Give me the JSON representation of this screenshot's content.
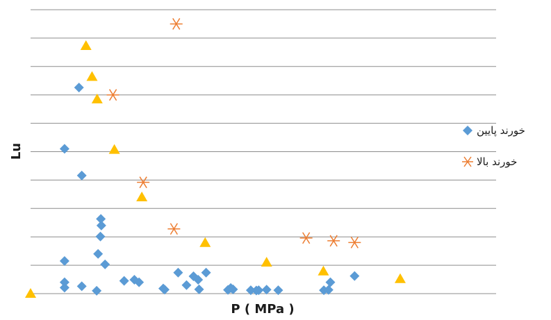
{
  "chart_data": {
    "type": "scatter",
    "title": "",
    "xlabel": "P ( MPa )",
    "ylabel": "Lu",
    "xlim": [
      0,
      100
    ],
    "ylim": [
      0,
      100
    ],
    "grid": "horizontal",
    "legend_position": "right",
    "series": [
      {
        "name": "خورند پایین",
        "marker": "diamond",
        "color": "#5B9BD5",
        "points": [
          [
            7.3,
            2.1
          ],
          [
            7.3,
            4.0
          ],
          [
            7.3,
            11.5
          ],
          [
            7.3,
            51.0
          ],
          [
            11.0,
            2.6
          ],
          [
            11.0,
            41.6
          ],
          [
            10.4,
            72.6
          ],
          [
            14.2,
            1.0
          ],
          [
            14.5,
            14.0
          ],
          [
            15.0,
            20.1
          ],
          [
            15.2,
            24.0
          ],
          [
            15.1,
            26.3
          ],
          [
            16.0,
            10.3
          ],
          [
            20.1,
            4.5
          ],
          [
            22.3,
            4.9
          ],
          [
            23.3,
            4.0
          ],
          [
            28.5,
            1.8
          ],
          [
            28.8,
            1.4
          ],
          [
            31.7,
            7.4
          ],
          [
            33.5,
            3.0
          ],
          [
            35.0,
            6.1
          ],
          [
            36.0,
            4.9
          ],
          [
            36.2,
            1.5
          ],
          [
            37.7,
            7.4
          ],
          [
            42.4,
            1.3
          ],
          [
            43.0,
            2.0
          ],
          [
            43.5,
            1.5
          ],
          [
            47.3,
            1.2
          ],
          [
            48.5,
            1.1
          ],
          [
            49.0,
            1.2
          ],
          [
            50.7,
            1.4
          ],
          [
            53.2,
            1.2
          ],
          [
            63.0,
            1.2
          ],
          [
            64.0,
            1.3
          ],
          [
            64.4,
            4.0
          ],
          [
            69.6,
            6.2
          ]
        ]
      },
      {
        "name": "خورند بالا",
        "marker": "asterisk",
        "color": "#ED7D31",
        "points": [
          [
            31.3,
            95.0
          ],
          [
            17.7,
            70.0
          ],
          [
            24.2,
            39.2
          ],
          [
            30.8,
            22.8
          ],
          [
            59.2,
            19.6
          ],
          [
            65.1,
            18.6
          ],
          [
            69.6,
            18.0
          ]
        ]
      },
      {
        "name": "",
        "marker": "triangle",
        "color": "#FFC000",
        "points": [
          [
            0.0,
            0.0
          ],
          [
            11.9,
            87.3
          ],
          [
            13.2,
            76.4
          ],
          [
            14.3,
            68.5
          ],
          [
            18.0,
            50.7
          ],
          [
            23.9,
            34.0
          ],
          [
            37.5,
            17.9
          ],
          [
            50.7,
            11.0
          ],
          [
            62.9,
            7.9
          ],
          [
            79.4,
            5.2
          ]
        ]
      }
    ]
  }
}
